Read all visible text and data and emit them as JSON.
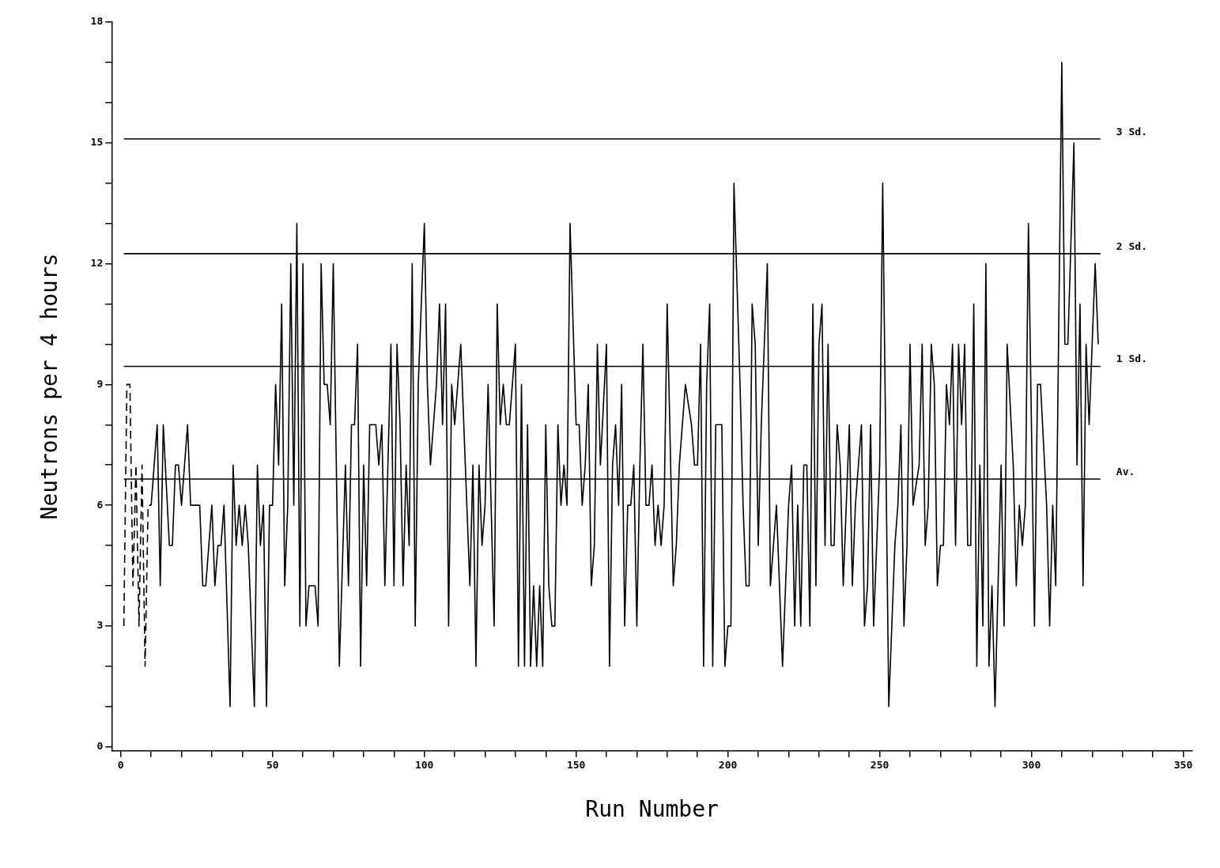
{
  "chart_data": {
    "type": "line",
    "xlabel": "Run Number",
    "ylabel": "Neutrons per 4 hours",
    "xlim": [
      -3,
      353
    ],
    "ylim": [
      -0.1,
      18
    ],
    "xticks": [
      0,
      {
        "value": 10,
        "label": null
      },
      {
        "value": 20,
        "label": null
      },
      {
        "value": 30,
        "label": null
      },
      {
        "value": 40,
        "label": null
      },
      50,
      {
        "value": 60,
        "label": null
      },
      {
        "value": 70,
        "label": null
      },
      {
        "value": 80,
        "label": null
      },
      {
        "value": 90,
        "label": null
      },
      100,
      {
        "value": 110,
        "label": null
      },
      {
        "value": 120,
        "label": null
      },
      {
        "value": 130,
        "label": null
      },
      {
        "value": 140,
        "label": null
      },
      150,
      {
        "value": 160,
        "label": null
      },
      {
        "value": 170,
        "label": null
      },
      {
        "value": 180,
        "label": null
      },
      {
        "value": 190,
        "label": null
      },
      200,
      {
        "value": 210,
        "label": null
      },
      {
        "value": 220,
        "label": null
      },
      {
        "value": 230,
        "label": null
      },
      {
        "value": 240,
        "label": null
      },
      250,
      {
        "value": 260,
        "label": null
      },
      {
        "value": 270,
        "label": null
      },
      {
        "value": 280,
        "label": null
      },
      {
        "value": 290,
        "label": null
      },
      300,
      {
        "value": 310,
        "label": null
      },
      {
        "value": 320,
        "label": null
      },
      {
        "value": 330,
        "label": null
      },
      {
        "value": 340,
        "label": null
      },
      350
    ],
    "yticks": [
      0,
      {
        "value": 1,
        "label": null
      },
      {
        "value": 2,
        "label": null
      },
      3,
      {
        "value": 4,
        "label": null
      },
      {
        "value": 5,
        "label": null
      },
      6,
      {
        "value": 7,
        "label": null
      },
      {
        "value": 8,
        "label": null
      },
      9,
      {
        "value": 10,
        "label": null
      },
      {
        "value": 11,
        "label": null
      },
      12,
      {
        "value": 13,
        "label": null
      },
      {
        "value": 14,
        "label": null
      },
      15,
      {
        "value": 16,
        "label": null
      },
      {
        "value": 17,
        "label": null
      },
      18
    ],
    "grid": false,
    "legend": false,
    "marker": "none",
    "series": [
      {
        "color": "#000000",
        "line_style": "dashed",
        "x": [
          1,
          2,
          3,
          4,
          5,
          6,
          7,
          8,
          9,
          10
        ],
        "values": [
          3,
          9,
          9,
          4,
          7,
          3,
          7,
          2,
          6,
          6
        ]
      },
      {
        "color": "#000000",
        "line_style": "solid",
        "x": [
          10,
          12,
          13,
          14,
          16,
          17,
          18,
          19,
          20,
          22,
          23,
          26,
          27,
          28,
          30,
          31,
          32,
          33,
          34,
          36,
          37,
          38,
          39,
          40,
          41,
          42,
          44,
          45,
          46,
          47,
          48,
          49,
          50,
          51,
          52,
          53,
          54,
          55,
          56,
          57,
          58,
          59,
          60,
          61,
          62,
          64,
          65,
          66,
          67,
          68,
          69,
          70,
          72,
          74,
          75,
          76,
          77,
          78,
          79,
          80,
          81,
          82,
          84,
          85,
          86,
          87,
          89,
          90,
          91,
          92,
          93,
          94,
          95,
          96,
          97,
          98,
          100,
          101,
          102,
          103,
          104,
          105,
          106,
          107,
          108,
          109,
          110,
          112,
          114,
          115,
          116,
          117,
          118,
          119,
          120,
          121,
          123,
          124,
          125,
          126,
          127,
          128,
          129,
          130,
          131,
          132,
          133,
          134,
          135,
          136,
          137,
          138,
          139,
          140,
          141,
          142,
          143,
          144,
          145,
          146,
          147,
          148,
          150,
          151,
          152,
          153,
          154,
          155,
          156,
          157,
          158,
          160,
          161,
          162,
          163,
          164,
          165,
          166,
          167,
          168,
          169,
          170,
          171,
          172,
          173,
          174,
          175,
          176,
          177,
          178,
          179,
          180,
          182,
          183,
          184,
          186,
          188,
          189,
          190,
          191,
          192,
          193,
          194,
          195,
          196,
          198,
          199,
          200,
          201,
          202,
          204,
          205,
          206,
          207,
          208,
          209,
          210,
          211,
          213,
          214,
          215,
          216,
          218,
          220,
          221,
          222,
          223,
          224,
          225,
          226,
          227,
          228,
          229,
          230,
          231,
          232,
          233,
          234,
          235,
          236,
          237,
          238,
          240,
          241,
          242,
          243,
          244,
          245,
          246,
          247,
          248,
          250,
          251,
          253,
          255,
          256,
          257,
          258,
          259,
          260,
          261,
          263,
          264,
          265,
          266,
          267,
          268,
          269,
          270,
          271,
          272,
          273,
          274,
          275,
          276,
          277,
          278,
          279,
          280,
          281,
          282,
          283,
          284,
          285,
          286,
          287,
          288,
          290,
          291,
          292,
          294,
          295,
          296,
          297,
          298,
          299,
          301,
          302,
          303,
          305,
          306,
          307,
          308,
          310,
          311,
          312,
          314,
          315,
          316,
          317,
          318,
          319,
          321,
          322
        ],
        "values": [
          6,
          8,
          4,
          8,
          5,
          5,
          7,
          7,
          6,
          8,
          6,
          6,
          4,
          4,
          6,
          4,
          5,
          5,
          6,
          1,
          7,
          5,
          6,
          5,
          6,
          5,
          1,
          7,
          5,
          6,
          1,
          6,
          6,
          9,
          7,
          11,
          4,
          6,
          12,
          6,
          13,
          3,
          12,
          3,
          4,
          4,
          3,
          12,
          9,
          9,
          8,
          12,
          2,
          7,
          4,
          8,
          8,
          10,
          2,
          7,
          4,
          8,
          8,
          7,
          8,
          4,
          10,
          4,
          10,
          8,
          4,
          7,
          5,
          12,
          3,
          9,
          13,
          9,
          7,
          8,
          9,
          11,
          8,
          11,
          3,
          9,
          8,
          10,
          6,
          4,
          7,
          2,
          7,
          5,
          6,
          9,
          3,
          11,
          8,
          9,
          8,
          8,
          9,
          10,
          2,
          9,
          2,
          8,
          2,
          4,
          2,
          4,
          2,
          8,
          4,
          3,
          3,
          8,
          6,
          7,
          6,
          13,
          8,
          8,
          6,
          7,
          9,
          4,
          5,
          10,
          7,
          10,
          2,
          7,
          8,
          6,
          9,
          3,
          6,
          6,
          7,
          3,
          7,
          10,
          6,
          6,
          7,
          5,
          6,
          5,
          6,
          11,
          4,
          5,
          7,
          9,
          8,
          7,
          7,
          10,
          2,
          9,
          11,
          2,
          8,
          8,
          2,
          3,
          3,
          14,
          9,
          6,
          4,
          4,
          11,
          10,
          5,
          8,
          12,
          4,
          5,
          6,
          2,
          6,
          7,
          3,
          6,
          3,
          7,
          7,
          3,
          11,
          4,
          10,
          11,
          5,
          10,
          5,
          5,
          8,
          7,
          4,
          8,
          4,
          6,
          7,
          8,
          3,
          4,
          8,
          3,
          7,
          14,
          1,
          5,
          6,
          8,
          3,
          5,
          10,
          6,
          7,
          10,
          5,
          6,
          10,
          9,
          4,
          5,
          5,
          9,
          8,
          10,
          5,
          10,
          8,
          10,
          5,
          5,
          11,
          2,
          7,
          3,
          12,
          2,
          4,
          1,
          7,
          3,
          10,
          7,
          4,
          6,
          5,
          6,
          13,
          3,
          9,
          9,
          6,
          3,
          6,
          4,
          17,
          10,
          10,
          15,
          7,
          11,
          4,
          10,
          8,
          12,
          10
        ]
      }
    ],
    "ref_lines": [
      {
        "axis": "y",
        "value": 6.65,
        "label": "Av."
      },
      {
        "axis": "y",
        "value": 9.45,
        "label": "1 Sd."
      },
      {
        "axis": "y",
        "value": 12.25,
        "label": "2 Sd."
      },
      {
        "axis": "y",
        "value": 15.1,
        "label": "3 Sd."
      }
    ]
  }
}
